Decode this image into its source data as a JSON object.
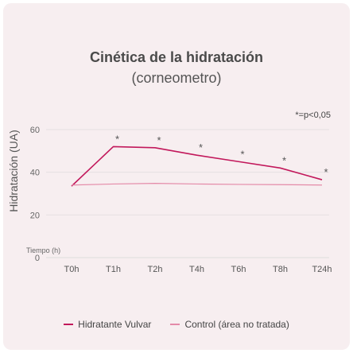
{
  "chart_data": {
    "type": "line",
    "title": "Cinética de la hidratación",
    "subtitle": "(corneometro)",
    "significance_note": "*=p<0,05",
    "xlabel": "Tiempo (h)",
    "ylabel": "Hidratación (UA)",
    "categories": [
      "T0h",
      "T1h",
      "T2h",
      "T4h",
      "T6h",
      "T8h",
      "T24h"
    ],
    "ylim": [
      0,
      60
    ],
    "yticks": [
      "0",
      "20",
      "40",
      "60"
    ],
    "grid": true,
    "legend_position": "bottom",
    "series": [
      {
        "name": "Hidratante Vulvar",
        "color": "#c2185b",
        "values": [
          33.5,
          52,
          51.5,
          48,
          45,
          42,
          36.5
        ],
        "markers": [
          "",
          "*",
          "*",
          "*",
          "*",
          "*",
          "*"
        ]
      },
      {
        "name": "Control (área no tratada)",
        "color": "#e48aa8",
        "values": [
          34,
          34.5,
          34.8,
          34.5,
          34.3,
          34.2,
          34
        ],
        "markers": [
          "",
          "",
          "",
          "",
          "",
          "",
          ""
        ]
      }
    ]
  }
}
